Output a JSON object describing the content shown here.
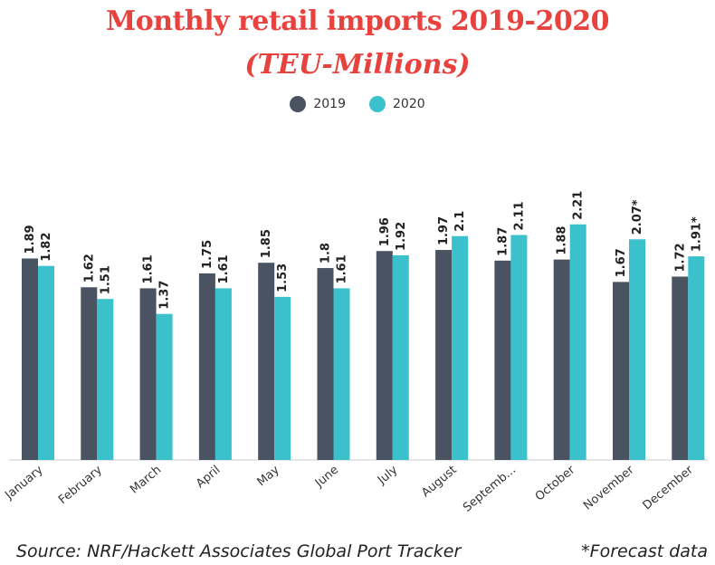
{
  "chart_data": {
    "type": "bar",
    "title": "Monthly retail imports 2019-2020",
    "subtitle": "(TEU-Millions)",
    "categories": [
      "January",
      "February",
      "March",
      "April",
      "May",
      "June",
      "July",
      "August",
      "Septemb...",
      "October",
      "November",
      "December"
    ],
    "series": [
      {
        "name": "2019",
        "color": "#4a5362",
        "values": [
          1.89,
          1.62,
          1.61,
          1.75,
          1.85,
          1.8,
          1.96,
          1.97,
          1.87,
          1.88,
          1.67,
          1.72
        ],
        "labels": [
          "1.89",
          "1.62",
          "1.61",
          "1.75",
          "1.85",
          "1.8",
          "1.96",
          "1.97",
          "1.87",
          "1.88",
          "1.67",
          "1.72"
        ]
      },
      {
        "name": "2020",
        "color": "#3bc1cc",
        "values": [
          1.82,
          1.51,
          1.37,
          1.61,
          1.53,
          1.61,
          1.92,
          2.1,
          2.11,
          2.21,
          2.07,
          1.91
        ],
        "labels": [
          "1.82",
          "1.51",
          "1.37",
          "1.61",
          "1.53",
          "1.61",
          "1.92",
          "2.1",
          "2.11",
          "2.21",
          "2.07*",
          "1.91*"
        ]
      }
    ],
    "ylim": [
      0,
      2.48
    ],
    "grid": false,
    "legend_position": "top-center"
  },
  "footer": {
    "source": "Source: NRF/Hackett Associates Global Port Tracker",
    "note": "*Forecast data"
  },
  "colors": {
    "title": "#e8423f",
    "series_2019": "#4a5362",
    "series_2020": "#3bc1cc"
  }
}
